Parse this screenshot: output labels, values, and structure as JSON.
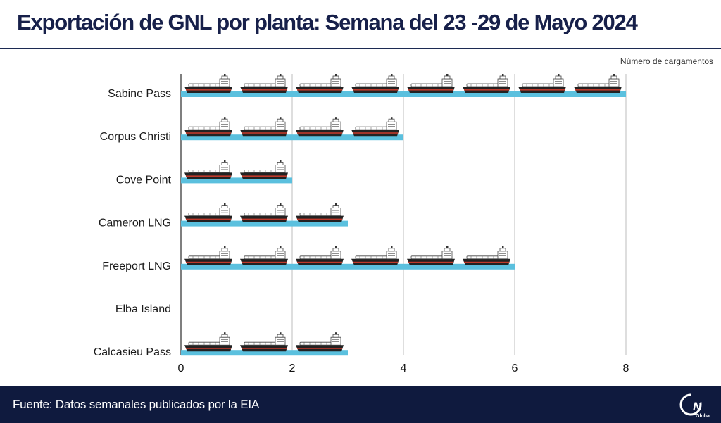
{
  "title": "Exportación de GNL  por planta: Semana del 23 -29 de Mayo 2024",
  "footer": {
    "source": "Fuente: Datos semanales publicados por la EIA",
    "logo_text": "GNL",
    "logo_sub": "Global"
  },
  "colors": {
    "navy": "#0f1a3e",
    "bar": "#5bc0de",
    "ship_hull": "#222222",
    "ship_stripe": "#c0392b"
  },
  "chart_data": {
    "type": "bar",
    "orientation": "horizontal",
    "categories": [
      "Sabine Pass",
      "Corpus Christi",
      "Cove Point",
      "Cameron LNG",
      "Freeport LNG",
      "Elba Island",
      "Calcasieu Pass"
    ],
    "values": [
      8,
      4,
      2,
      3,
      6,
      0,
      3
    ],
    "xlabel": "Número de cargamentos",
    "xticks": [
      0,
      2,
      4,
      6,
      8
    ],
    "xlim": [
      0,
      8
    ],
    "grid": "vertical",
    "marker_icon": "lng-tanker-ship-icon"
  }
}
